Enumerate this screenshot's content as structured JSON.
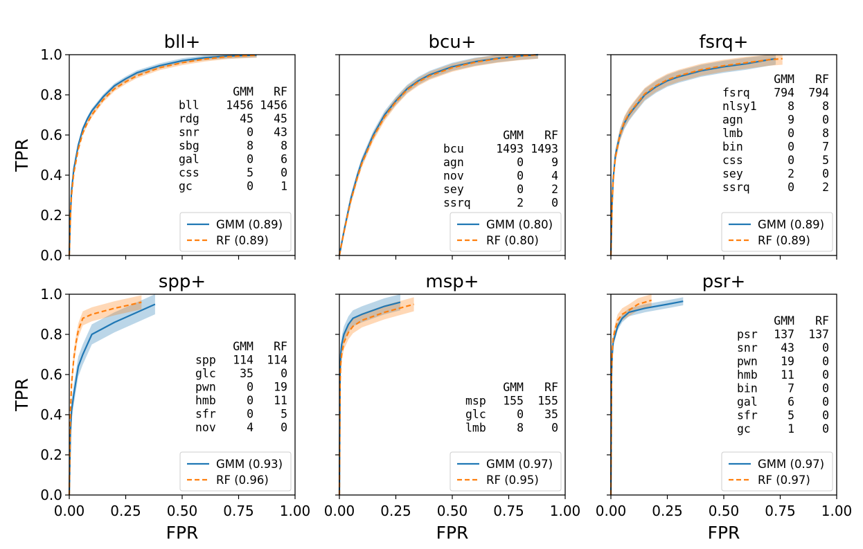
{
  "colors": {
    "gmm": "#1f77b4",
    "rf": "#ff7f0e",
    "axis": "#000000",
    "legend_border": "#cccccc"
  },
  "axis": {
    "xlabel": "FPR",
    "ylabel": "TPR",
    "xticks": [
      "0.00",
      "0.25",
      "0.50",
      "0.75",
      "1.00"
    ],
    "yticks": [
      "0.0",
      "0.2",
      "0.4",
      "0.6",
      "0.8",
      "1.0"
    ],
    "xlim": [
      0,
      1
    ],
    "ylim": [
      0,
      1
    ]
  },
  "chart_data": [
    {
      "type": "line",
      "title": "bll+",
      "legend": [
        "GMM (0.89)",
        "RF (0.89)"
      ],
      "legend_position": "lower-right",
      "table": {
        "header": [
          "",
          "GMM",
          "RF"
        ],
        "rows": [
          [
            "bll",
            "1456",
            "1456"
          ],
          [
            "rdg",
            "45",
            "45"
          ],
          [
            "snr",
            "0",
            "43"
          ],
          [
            "sbg",
            "8",
            "8"
          ],
          [
            "gal",
            "0",
            "6"
          ],
          [
            "css",
            "5",
            "0"
          ],
          [
            "gc",
            "0",
            "1"
          ]
        ]
      },
      "series": [
        {
          "name": "GMM",
          "style": "solid",
          "x": [
            0,
            0.005,
            0.01,
            0.02,
            0.04,
            0.06,
            0.08,
            0.1,
            0.15,
            0.2,
            0.25,
            0.3,
            0.4,
            0.5,
            0.6,
            0.7,
            0.8,
            0.83
          ],
          "y": [
            0,
            0.2,
            0.32,
            0.43,
            0.55,
            0.63,
            0.68,
            0.72,
            0.79,
            0.845,
            0.88,
            0.91,
            0.945,
            0.97,
            0.985,
            0.993,
            0.997,
            0.998
          ],
          "band": 0.012
        },
        {
          "name": "RF",
          "style": "dashed",
          "x": [
            0,
            0.005,
            0.01,
            0.02,
            0.04,
            0.06,
            0.08,
            0.1,
            0.15,
            0.2,
            0.25,
            0.3,
            0.4,
            0.5,
            0.6,
            0.7,
            0.8,
            0.83
          ],
          "y": [
            0,
            0.19,
            0.3,
            0.41,
            0.53,
            0.61,
            0.66,
            0.7,
            0.775,
            0.83,
            0.865,
            0.895,
            0.935,
            0.96,
            0.978,
            0.99,
            0.996,
            0.997
          ],
          "band": 0.012
        }
      ]
    },
    {
      "type": "line",
      "title": "bcu+",
      "legend": [
        "GMM (0.80)",
        "RF (0.80)"
      ],
      "legend_position": "lower-right",
      "table": {
        "header": [
          "",
          "GMM",
          "RF"
        ],
        "rows": [
          [
            "bcu",
            "1493",
            "1493"
          ],
          [
            "agn",
            "0",
            "9"
          ],
          [
            "nov",
            "0",
            "4"
          ],
          [
            "sey",
            "0",
            "2"
          ],
          [
            "ssrq",
            "2",
            "0"
          ]
        ]
      },
      "series": [
        {
          "name": "GMM",
          "style": "solid",
          "x": [
            0,
            0.02,
            0.05,
            0.08,
            0.1,
            0.15,
            0.2,
            0.25,
            0.3,
            0.35,
            0.4,
            0.5,
            0.6,
            0.7,
            0.8,
            0.88
          ],
          "y": [
            0,
            0.12,
            0.28,
            0.4,
            0.47,
            0.6,
            0.7,
            0.77,
            0.83,
            0.87,
            0.9,
            0.94,
            0.965,
            0.982,
            0.994,
            1.0
          ],
          "band": 0.02
        },
        {
          "name": "RF",
          "style": "dashed",
          "x": [
            0,
            0.02,
            0.05,
            0.08,
            0.1,
            0.15,
            0.2,
            0.25,
            0.3,
            0.35,
            0.4,
            0.5,
            0.6,
            0.7,
            0.8,
            0.88
          ],
          "y": [
            0,
            0.115,
            0.27,
            0.39,
            0.46,
            0.59,
            0.69,
            0.765,
            0.825,
            0.865,
            0.895,
            0.935,
            0.962,
            0.98,
            0.993,
            1.0
          ],
          "band": 0.02
        }
      ]
    },
    {
      "type": "line",
      "title": "fsrq+",
      "legend": [
        "GMM (0.89)",
        "RF (0.89)"
      ],
      "legend_position": "lower-right",
      "table": {
        "header": [
          "",
          "GMM",
          "RF"
        ],
        "rows": [
          [
            "fsrq",
            "794",
            "794"
          ],
          [
            "nlsy1",
            "8",
            "8"
          ],
          [
            "agn",
            "9",
            "0"
          ],
          [
            "lmb",
            "0",
            "8"
          ],
          [
            "bin",
            "0",
            "7"
          ],
          [
            "css",
            "0",
            "5"
          ],
          [
            "sey",
            "2",
            "0"
          ],
          [
            "ssrq",
            "0",
            "2"
          ]
        ]
      },
      "series": [
        {
          "name": "GMM",
          "style": "solid",
          "x": [
            0,
            0.005,
            0.01,
            0.02,
            0.04,
            0.06,
            0.08,
            0.1,
            0.15,
            0.2,
            0.25,
            0.3,
            0.4,
            0.5,
            0.6,
            0.7,
            0.73
          ],
          "y": [
            0,
            0.25,
            0.38,
            0.5,
            0.6,
            0.66,
            0.7,
            0.73,
            0.8,
            0.84,
            0.87,
            0.89,
            0.92,
            0.94,
            0.955,
            0.975,
            0.98
          ],
          "band": 0.03
        },
        {
          "name": "RF",
          "style": "dashed",
          "x": [
            0,
            0.005,
            0.01,
            0.02,
            0.04,
            0.06,
            0.08,
            0.1,
            0.15,
            0.2,
            0.25,
            0.3,
            0.4,
            0.5,
            0.6,
            0.7,
            0.76
          ],
          "y": [
            0,
            0.24,
            0.37,
            0.49,
            0.6,
            0.665,
            0.705,
            0.735,
            0.805,
            0.845,
            0.875,
            0.895,
            0.925,
            0.945,
            0.96,
            0.975,
            0.98
          ],
          "band": 0.03
        }
      ]
    },
    {
      "type": "line",
      "title": "spp+",
      "legend": [
        "GMM (0.93)",
        "RF (0.96)"
      ],
      "legend_position": "lower-right",
      "table": {
        "header": [
          "",
          "GMM",
          "RF"
        ],
        "rows": [
          [
            "spp",
            "114",
            "114"
          ],
          [
            "glc",
            "35",
            "0"
          ],
          [
            "pwn",
            "0",
            "19"
          ],
          [
            "hmb",
            "0",
            "11"
          ],
          [
            "sfr",
            "0",
            "5"
          ],
          [
            "nov",
            "4",
            "0"
          ]
        ]
      },
      "series": [
        {
          "name": "GMM",
          "style": "solid",
          "x": [
            0,
            0.005,
            0.01,
            0.02,
            0.03,
            0.04,
            0.06,
            0.1,
            0.2,
            0.3,
            0.38
          ],
          "y": [
            0,
            0.3,
            0.42,
            0.5,
            0.57,
            0.64,
            0.7,
            0.8,
            0.86,
            0.91,
            0.95
          ],
          "band": 0.05
        },
        {
          "name": "RF",
          "style": "dashed",
          "x": [
            0,
            0.005,
            0.01,
            0.02,
            0.03,
            0.04,
            0.06,
            0.1,
            0.2,
            0.32
          ],
          "y": [
            0,
            0.4,
            0.55,
            0.68,
            0.76,
            0.82,
            0.88,
            0.9,
            0.93,
            0.96
          ],
          "band": 0.035
        }
      ]
    },
    {
      "type": "line",
      "title": "msp+",
      "legend": [
        "GMM (0.97)",
        "RF (0.95)"
      ],
      "legend_position": "lower-right",
      "table": {
        "header": [
          "",
          "GMM",
          "RF"
        ],
        "rows": [
          [
            "msp",
            "155",
            "155"
          ],
          [
            "glc",
            "0",
            "35"
          ],
          [
            "lmb",
            "8",
            "0"
          ]
        ]
      },
      "series": [
        {
          "name": "GMM",
          "style": "solid",
          "x": [
            0,
            0.003,
            0.006,
            0.01,
            0.02,
            0.04,
            0.06,
            0.1,
            0.2,
            0.27
          ],
          "y": [
            0,
            0.6,
            0.7,
            0.75,
            0.8,
            0.85,
            0.88,
            0.9,
            0.94,
            0.96
          ],
          "band": 0.04
        },
        {
          "name": "RF",
          "style": "dashed",
          "x": [
            0,
            0.003,
            0.006,
            0.01,
            0.02,
            0.04,
            0.06,
            0.1,
            0.2,
            0.33
          ],
          "y": [
            0,
            0.55,
            0.65,
            0.7,
            0.76,
            0.81,
            0.84,
            0.87,
            0.91,
            0.95
          ],
          "band": 0.035
        }
      ]
    },
    {
      "type": "line",
      "title": "psr+",
      "legend": [
        "GMM (0.97)",
        "RF (0.97)"
      ],
      "legend_position": "lower-right",
      "table": {
        "header": [
          "",
          "GMM",
          "RF"
        ],
        "rows": [
          [
            "psr",
            "137",
            "137"
          ],
          [
            "snr",
            "43",
            "0"
          ],
          [
            "pwn",
            "19",
            "0"
          ],
          [
            "hmb",
            "11",
            "0"
          ],
          [
            "bin",
            "7",
            "0"
          ],
          [
            "gal",
            "6",
            "0"
          ],
          [
            "sfr",
            "5",
            "0"
          ],
          [
            "gc",
            "1",
            "0"
          ]
        ]
      },
      "series": [
        {
          "name": "GMM",
          "style": "solid",
          "x": [
            0,
            0.003,
            0.006,
            0.01,
            0.02,
            0.03,
            0.05,
            0.08,
            0.15,
            0.25,
            0.32
          ],
          "y": [
            0,
            0.6,
            0.7,
            0.76,
            0.8,
            0.84,
            0.88,
            0.91,
            0.93,
            0.95,
            0.965
          ],
          "band": 0.02
        },
        {
          "name": "RF",
          "style": "dashed",
          "x": [
            0,
            0.003,
            0.006,
            0.01,
            0.02,
            0.03,
            0.05,
            0.08,
            0.12,
            0.18
          ],
          "y": [
            0,
            0.62,
            0.72,
            0.78,
            0.83,
            0.87,
            0.9,
            0.92,
            0.95,
            0.97
          ],
          "band": 0.03
        }
      ]
    }
  ]
}
